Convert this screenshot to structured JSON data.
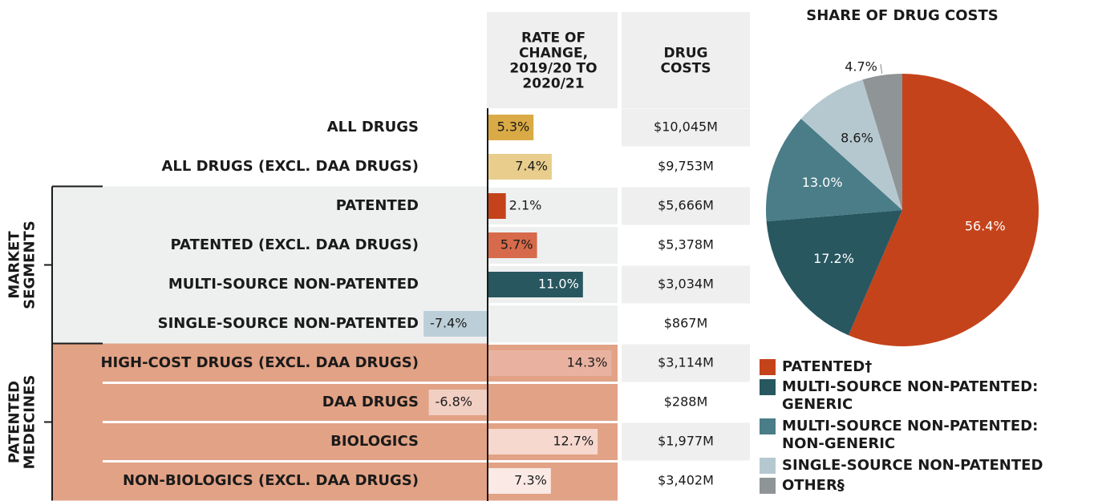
{
  "chart_data": [
    {
      "type": "bar",
      "rate_header": "RATE OF CHANGE, 2019/20 TO 2020/21",
      "costs_header": "DRUG COSTS",
      "groups": [
        "MARKET SEGMENTS",
        "PATENTED MEDECINES"
      ],
      "categories": [
        "ALL DRUGS",
        "ALL DRUGS (EXCL. DAA DRUGS)",
        "PATENTED",
        "PATENTED (EXCL. DAA DRUGS)",
        "MULTI-SOURCE NON-PATENTED",
        "SINGLE-SOURCE NON-PATENTED",
        "HIGH-COST DRUGS (EXCL. DAA DRUGS)",
        "DAA DRUGS",
        "BIOLOGICS",
        "NON-BIOLOGICS (EXCL. DAA DRUGS)"
      ],
      "values": [
        5.3,
        7.4,
        2.1,
        5.7,
        11.0,
        -7.4,
        14.3,
        -6.8,
        12.7,
        7.3
      ],
      "value_labels": [
        "5.3%",
        "7.4%",
        "2.1%",
        "5.7%",
        "11.0%",
        "-7.4%",
        "14.3%",
        "-6.8%",
        "12.7%",
        "7.3%"
      ],
      "colors": [
        "#d9aa45",
        "#e8cd8c",
        "#c5431b",
        "#d66a4a",
        "#285760",
        "#bccfd8",
        "#e9b2a0",
        "#f2cfc3",
        "#f6d8cf",
        "#fae9e4"
      ],
      "costs": [
        "$10,045M",
        "$9,753M",
        "$5,666M",
        "$5,378M",
        "$3,034M",
        "$867M",
        "$3,114M",
        "$288M",
        "$1,977M",
        "$3,402M"
      ]
    },
    {
      "type": "pie",
      "title": "SHARE OF DRUG COSTS",
      "categories": [
        "PATENTED†",
        "MULTI-SOURCE NON-PATENTED: GENERIC",
        "MULTI-SOURCE NON-PATENTED: NON-GENERIC",
        "SINGLE-SOURCE NON-PATENTED",
        "OTHER§"
      ],
      "values": [
        56.4,
        17.2,
        13.0,
        8.6,
        4.7
      ],
      "value_labels": [
        "56.4%",
        "17.2%",
        "13.0%",
        "8.6%",
        "4.7%"
      ],
      "colors": [
        "#c5431b",
        "#285760",
        "#4a7d88",
        "#b5c8cf",
        "#8f9496"
      ]
    }
  ]
}
